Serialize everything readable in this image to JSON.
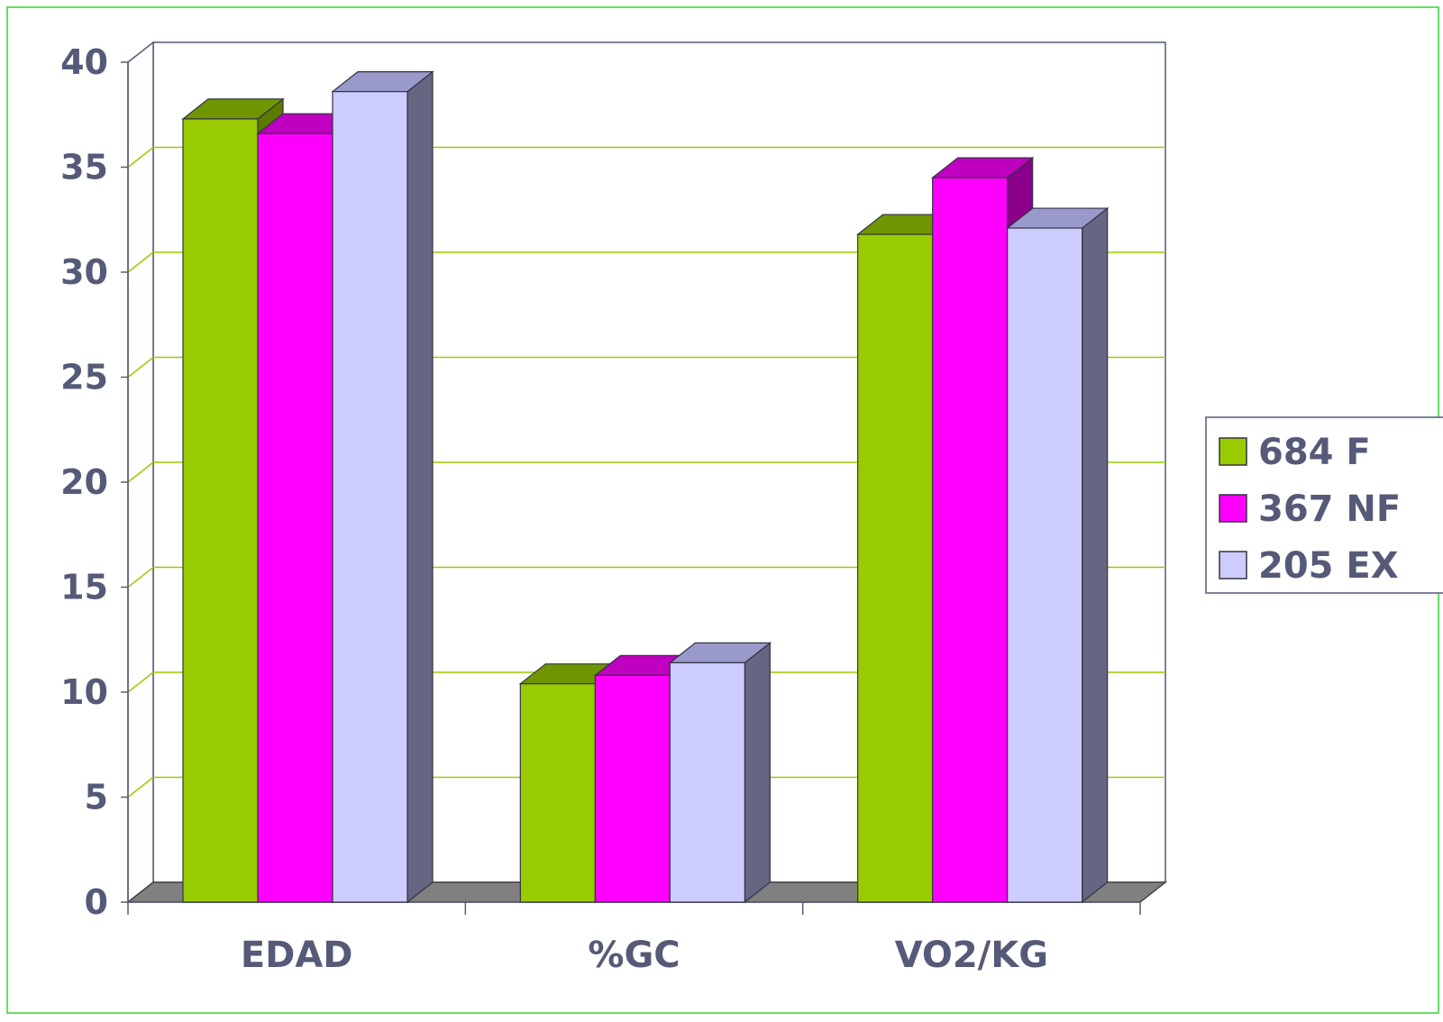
{
  "chart_data": {
    "type": "bar",
    "categories": [
      "EDAD",
      "%GC",
      "VO2/KG"
    ],
    "series": [
      {
        "name": "684  F",
        "values": [
          37.3,
          10.4,
          31.8
        ],
        "color": "#99cc00",
        "top": "#6f9600",
        "side": "#5b7a00"
      },
      {
        "name": "367 NF",
        "values": [
          36.6,
          10.8,
          34.5
        ],
        "color": "#ff00ff",
        "top": "#c000c0",
        "side": "#8a008a"
      },
      {
        "name": "205 EX",
        "values": [
          38.6,
          11.4,
          32.1
        ],
        "color": "#ccccff",
        "top": "#9999cc",
        "side": "#646682"
      }
    ],
    "ylim": [
      0,
      40
    ],
    "yticks": [
      "0",
      "5",
      "10",
      "15",
      "20",
      "25",
      "30",
      "35",
      "40"
    ],
    "grid": true,
    "legend": "right"
  }
}
